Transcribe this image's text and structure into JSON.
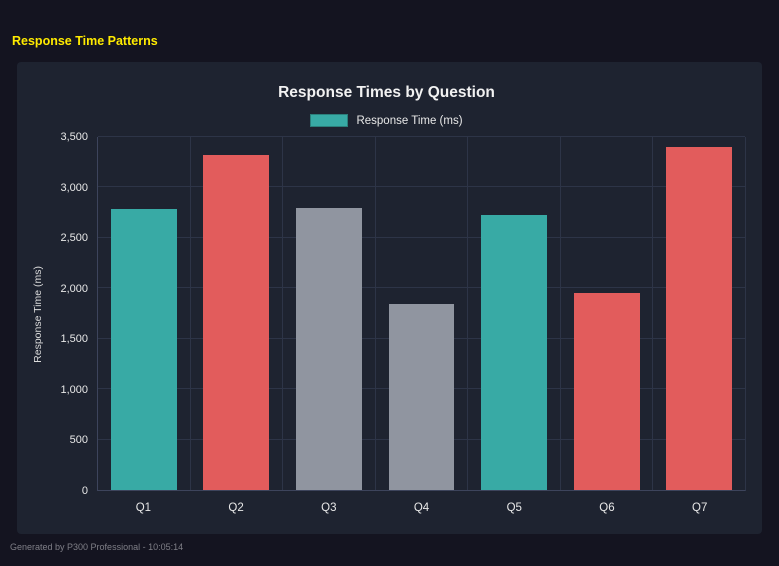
{
  "page": {
    "title": "Response Time Patterns",
    "footer": "Generated by P300 Professional - 10:05:14"
  },
  "chart_data": {
    "type": "bar",
    "title": "Response Times by Question",
    "legend": [
      {
        "label": "Response Time (ms)",
        "color": "#38aaa5"
      }
    ],
    "legend_position": "top",
    "categories": [
      "Q1",
      "Q2",
      "Q3",
      "Q4",
      "Q5",
      "Q6",
      "Q7"
    ],
    "values": [
      2790,
      3320,
      2800,
      1840,
      2730,
      1950,
      3400
    ],
    "bar_colors": [
      "#38aaa5",
      "#e25c5c",
      "#9095a0",
      "#9095a0",
      "#38aaa5",
      "#e25c5c",
      "#e25c5c"
    ],
    "xlabel": "",
    "ylabel": "Response Time (ms)",
    "ylim": [
      0,
      3500
    ],
    "ytick_step": 500,
    "ytick_labels": [
      "0",
      "500",
      "1,000",
      "1,500",
      "2,000",
      "2,500",
      "3,000",
      "3,500"
    ],
    "grid": true,
    "accent_colors": {
      "teal": "#38aaa5",
      "red": "#e25c5c",
      "gray": "#9095a0",
      "title_yellow": "#ffeb00"
    }
  }
}
